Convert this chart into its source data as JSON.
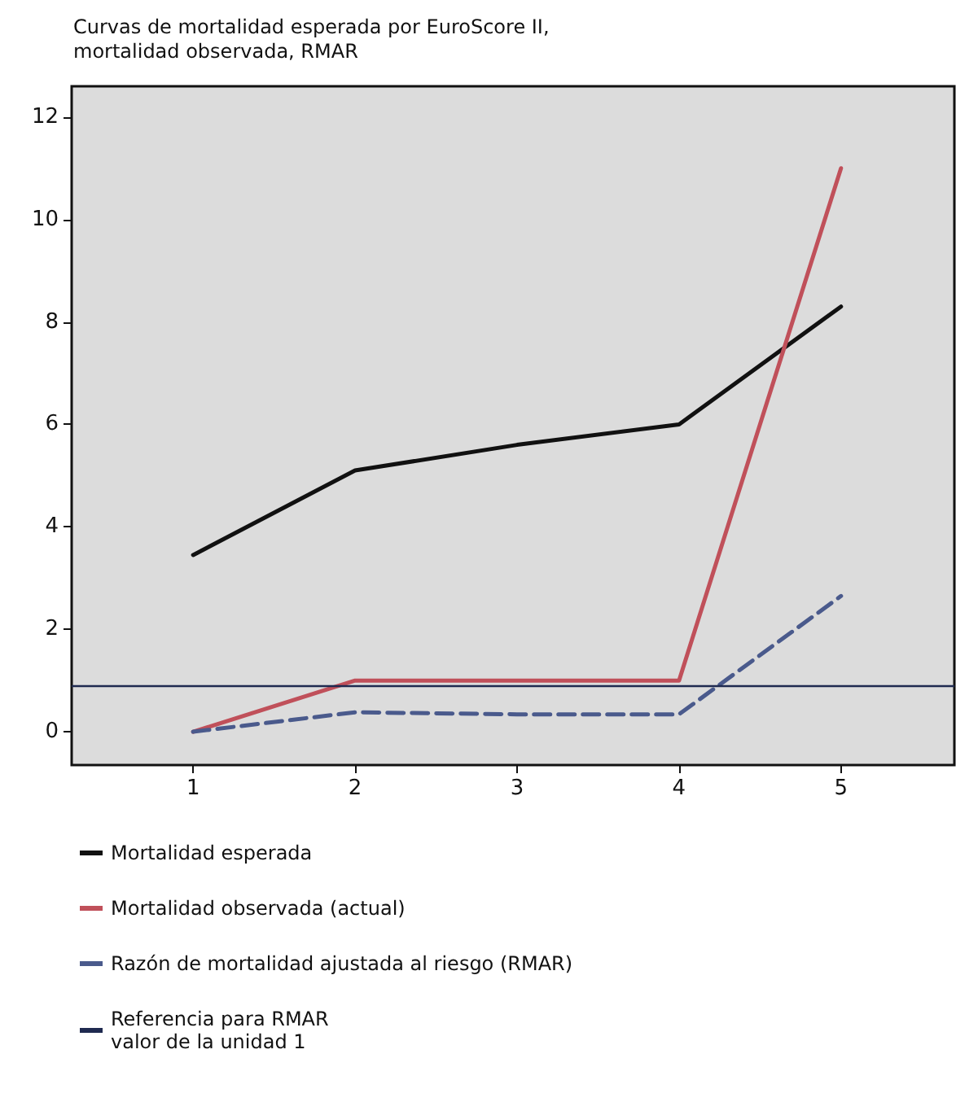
{
  "chart_data": {
    "type": "line",
    "title": "Curvas de mortalidad esperada por EuroScore II,\nmortalidad observada, RMAR",
    "x": [
      1,
      2,
      3,
      4,
      5
    ],
    "series": [
      {
        "name": "Mortalidad esperada",
        "color": "#111111",
        "values": [
          3.45,
          5.1,
          5.6,
          6.0,
          8.3
        ]
      },
      {
        "name": "Mortalidad observada (actual)",
        "color": "#c0505a",
        "values": [
          0,
          1.0,
          1.0,
          1.0,
          11.0
        ]
      },
      {
        "name": "Razón de mortalidad ajustada al riesgo (RMAR)",
        "color": "#4a5a8c",
        "values": [
          0,
          0.38,
          0.34,
          0.34,
          2.65
        ],
        "line_style": "dashed"
      }
    ],
    "ref_lines": [
      {
        "axis": "y",
        "value": 0.9,
        "label": "Referencia para RMAR\nvalor de la unidad 1",
        "color": "#1f2a50"
      }
    ],
    "xlim": [
      0.25,
      5.7
    ],
    "xticks": [
      1,
      2,
      3,
      4,
      5
    ],
    "ylim": [
      -0.65,
      12.6
    ],
    "yticks": [
      0,
      2,
      4,
      6,
      8,
      10,
      12
    ],
    "grid": false,
    "legend": "bottom",
    "marker": "none",
    "line_style": "solid"
  }
}
